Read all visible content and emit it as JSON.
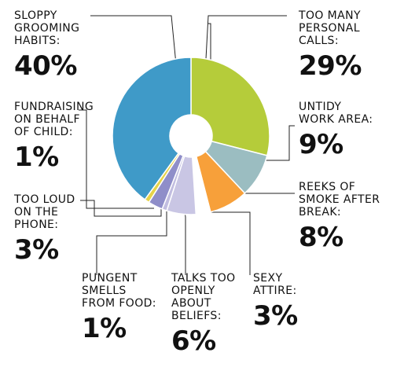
{
  "chart_data": {
    "type": "pie",
    "style": "donut",
    "slices": [
      {
        "label": "TOO MANY\nPERSONAL\nCALLS:",
        "value": 29,
        "value_text": "29%",
        "color": "#b5cc3a"
      },
      {
        "label": "UNTIDY\nWORK AREA:",
        "value": 9,
        "value_text": "9%",
        "color": "#9bbdc1"
      },
      {
        "label": "REEKS OF\nSMOKE AFTER\nBREAK:",
        "value": 8,
        "value_text": "8%",
        "color": "#f7a03a"
      },
      {
        "label": "SEXY\nATTIRE:",
        "value": 3,
        "value_text": "3%",
        "color": "#ffffff"
      },
      {
        "label": "TALKS TOO\nOPENLY\nABOUT\nBELIEFS:",
        "value": 6,
        "value_text": "6%",
        "color": "#c9c6e4"
      },
      {
        "label": "PUNGENT\nSMELLS\nFROM FOOD:",
        "value": 1,
        "value_text": "1%",
        "color": "#c1bde0"
      },
      {
        "label": "TOO LOUD\nON THE\nPHONE:",
        "value": 3,
        "value_text": "3%",
        "color": "#8f8ec9"
      },
      {
        "label": "FUNDRAISING\nON BEHALF\nOF CHILD:",
        "value": 1,
        "value_text": "1%",
        "color": "#e6d34a"
      },
      {
        "label": "SLOPPY\nGROOMING\nHABITS:",
        "value": 40,
        "value_text": "40%",
        "color": "#3f9ac8"
      }
    ]
  }
}
